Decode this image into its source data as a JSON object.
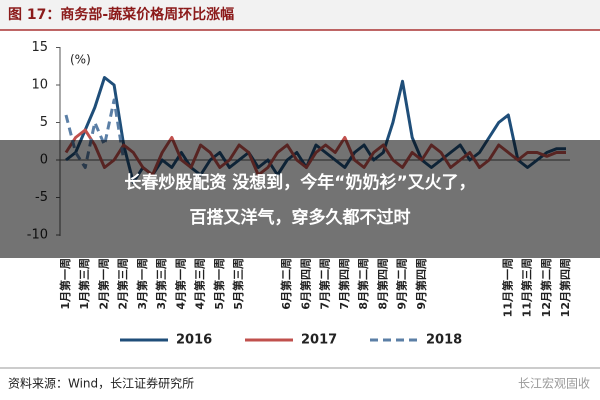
{
  "chart_data": {
    "type": "line",
    "title": "图 17：商务部-蔬菜价格周环比涨幅",
    "y_label": "(%)",
    "categories": [
      "1月第一周",
      null,
      "1月第三周",
      null,
      "2月第一周",
      null,
      "2月第三周",
      null,
      "3月第一周",
      null,
      "3月第三周",
      null,
      "4月第一周",
      null,
      "4月第三周",
      null,
      "5月第一周",
      null,
      "5月第三周",
      null,
      null,
      null,
      null,
      "6月第二周",
      null,
      "6月第四周",
      null,
      "7月第二周",
      null,
      "7月第四周",
      null,
      "8月第二周",
      null,
      "8月第四周",
      null,
      "9月第二周",
      null,
      "9月第四周",
      null,
      null,
      null,
      null,
      null,
      null,
      null,
      null,
      "11月第一周",
      null,
      "11月第三周",
      null,
      "12月第二周",
      null,
      "12月第四周"
    ],
    "series": [
      {
        "name": "2016",
        "color": "#1f4e79",
        "line_style": "solid",
        "values": [
          0,
          1,
          4,
          7,
          11,
          10,
          2,
          -3,
          -1,
          -2,
          0,
          -1,
          1,
          -1,
          -2,
          0,
          1,
          -1,
          0,
          1,
          -1,
          0,
          -2,
          0,
          1,
          -1,
          2,
          1,
          0,
          -1,
          1,
          2,
          0,
          1,
          5,
          10.5,
          3,
          0,
          -1,
          0,
          1,
          2,
          0,
          1,
          3,
          5,
          6,
          0,
          -1,
          0,
          1,
          1.5,
          1.5
        ]
      },
      {
        "name": "2017",
        "color": "#c0504d",
        "line_style": "solid",
        "values": [
          1,
          3,
          4,
          2,
          -1,
          0,
          2,
          1,
          -1,
          -2,
          1,
          3,
          0,
          -1,
          2,
          1,
          -1,
          0,
          2,
          1,
          -2,
          -1,
          1,
          2,
          0,
          -1,
          1,
          2,
          1,
          3,
          0,
          -1,
          1,
          2,
          0,
          -1,
          1,
          0,
          2,
          1,
          -1,
          0,
          1,
          -1,
          0,
          2,
          1,
          0,
          1,
          1,
          0.5,
          1,
          1
        ]
      },
      {
        "name": "2018",
        "color": "#5b7fa6",
        "line_style": "dashed",
        "values": [
          6,
          1,
          -1,
          5,
          2,
          8,
          0,
          null,
          null,
          null,
          null,
          null,
          null,
          null,
          null,
          null,
          null,
          null,
          null,
          null,
          null,
          null,
          null,
          null,
          null,
          null,
          null,
          null,
          null,
          null,
          null,
          null,
          null,
          null,
          null,
          null,
          null,
          null,
          null,
          null,
          null,
          null,
          null,
          null,
          null,
          null,
          null,
          null,
          null,
          null,
          null,
          null,
          null
        ]
      }
    ],
    "ylim": [
      -10,
      15
    ],
    "yticks": [
      -10,
      -5,
      0,
      5,
      10,
      15
    ],
    "grid": false,
    "legend": "bottom"
  },
  "overlay": {
    "lines": [
      "长春炒股配资 没想到，今年“奶奶衫”又火了，",
      "百搭又洋气，穿多久都不过时"
    ]
  },
  "footer": {
    "source": "资料来源：Wind，长江证券研究所",
    "watermark": "长江宏观固收"
  }
}
